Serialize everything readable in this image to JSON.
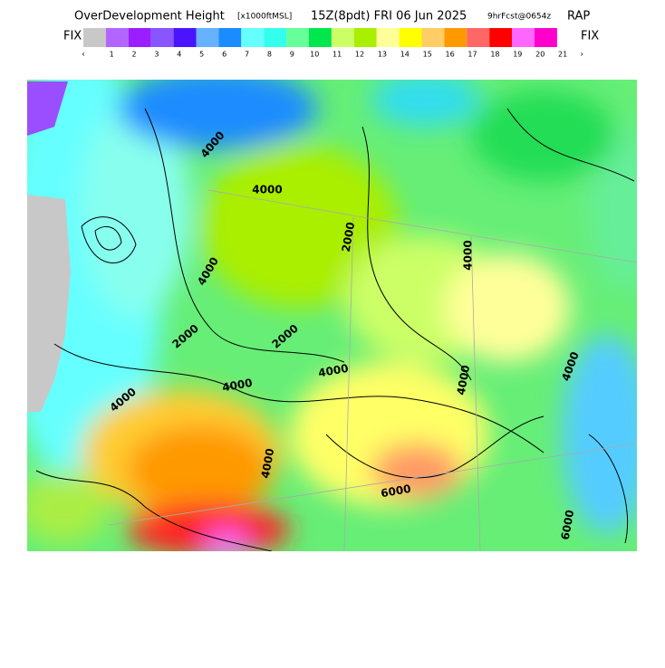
{
  "header": {
    "title": "OverDevelopment Height",
    "units": "[x1000ftMSL]",
    "valid": "15Z(8pdt) FRI 06 Jun 2025",
    "forecast": "9hrFcst@0654z",
    "model": "RAP"
  },
  "colorbar": {
    "left_label": "FIX",
    "right_label": "FIX",
    "low_arrow": "‹",
    "high_arrow": "›",
    "ticks": [
      1,
      2,
      3,
      4,
      5,
      6,
      7,
      8,
      9,
      10,
      11,
      12,
      13,
      14,
      15,
      16,
      17,
      18,
      19,
      20,
      21
    ],
    "colors": [
      "#c8c8c8",
      "#b266ff",
      "#9a1eff",
      "#8855ff",
      "#4b14ff",
      "#66b2ff",
      "#1a8cff",
      "#66ffff",
      "#33ffee",
      "#66ff99",
      "#00e64d",
      "#ccff66",
      "#aaee00",
      "#ffff99",
      "#ffff00",
      "#ffcc66",
      "#ff9900",
      "#ff6666",
      "#ff0000",
      "#ff66ff",
      "#ff00cc"
    ]
  },
  "contour_labels": [
    "4000",
    "4000",
    "2000",
    "4000",
    "4000",
    "2000",
    "2000",
    "4000",
    "4000",
    "4000",
    "4000",
    "4000",
    "6000",
    "4000",
    "6000"
  ]
}
